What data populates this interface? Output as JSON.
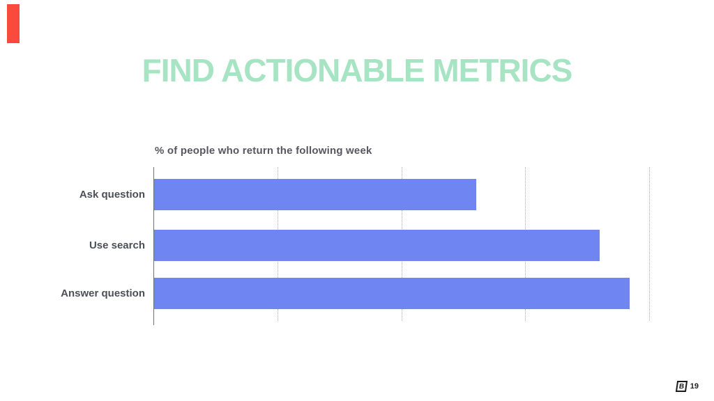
{
  "slide": {
    "title": "FIND ACTIONABLE METRICS",
    "title_color": "#a7e4c3",
    "accent_bar_color": "#fa4a3e",
    "logo_letter": "B",
    "page_number": "19"
  },
  "chart_data": {
    "type": "bar",
    "orientation": "horizontal",
    "title": "% of people who return the following week",
    "categories": [
      "Ask question",
      "Use search",
      "Answer question"
    ],
    "values": [
      65,
      90,
      96
    ],
    "value_unit": "%",
    "xlabel": "",
    "ylabel": "",
    "xlim": [
      0,
      100
    ],
    "gridlines_percent": [
      25,
      50,
      75,
      100
    ],
    "gridline_style": "dotted",
    "tick_labels_visible": false,
    "legend": "none",
    "bar_color": "#6e85f2"
  }
}
